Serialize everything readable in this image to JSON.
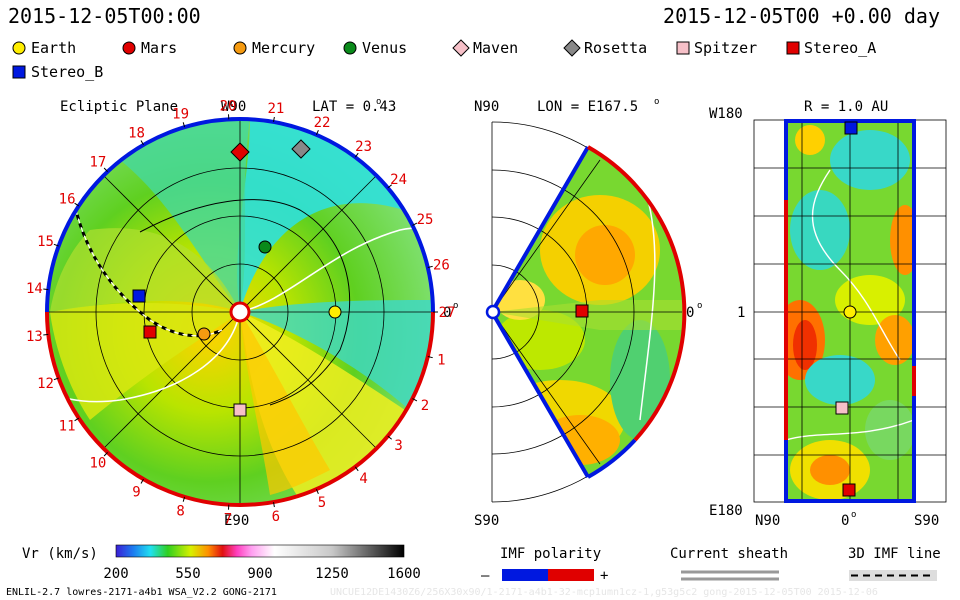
{
  "header": {
    "left_datetime": "2015-12-05T00:00",
    "right_datetime": "2015-12-05T00 +0.00 day"
  },
  "legend": [
    {
      "name": "Earth",
      "marker": "circle",
      "color": "#ffee00"
    },
    {
      "name": "Mars",
      "marker": "circle",
      "color": "#e00000"
    },
    {
      "name": "Mercury",
      "marker": "circle",
      "color": "#f59a10"
    },
    {
      "name": "Venus",
      "marker": "circle",
      "color": "#0a8a1a"
    },
    {
      "name": "Maven",
      "marker": "diamond",
      "color": "#f6c0c8"
    },
    {
      "name": "Rosetta",
      "marker": "diamond",
      "color": "#888888"
    },
    {
      "name": "Spitzer",
      "marker": "square",
      "color": "#f6c0c8"
    },
    {
      "name": "Stereo_A",
      "marker": "square",
      "color": "#e00000"
    },
    {
      "name": "Stereo_B",
      "marker": "square",
      "color": "#0018e0"
    }
  ],
  "panels": {
    "ecliptic": {
      "title": "Ecliptic Plane",
      "lat_label": "LAT = 0.43",
      "top_label": "W90",
      "bottom_label": "E90",
      "right_label": "0",
      "left_tick": "13",
      "carrington_ticks": [
        "1",
        "2",
        "3",
        "4",
        "5",
        "6",
        "7",
        "8",
        "9",
        "10",
        "11",
        "12",
        "13",
        "14",
        "15",
        "16",
        "17",
        "18",
        "19",
        "20",
        "21",
        "22",
        "23",
        "24",
        "25",
        "26",
        "27"
      ]
    },
    "meridional": {
      "top_label": "N90",
      "lon_label": "LON = E167.5",
      "bottom_label": "S90",
      "right_label": "0"
    },
    "shell": {
      "radius_label": "R = 1.0 AU",
      "top_left": "W180",
      "mid_left": "1",
      "bottom_left": "E180",
      "x_left": "N90",
      "x_mid": "0",
      "x_right": "S90"
    }
  },
  "colorbar": {
    "label": "Vr (km/s)",
    "ticks": [
      "200",
      "550",
      "900",
      "1250",
      "1600"
    ],
    "min": 200,
    "max": 1600
  },
  "bottom_legend": {
    "imf_label": "IMF polarity",
    "minus": "–",
    "plus": "+",
    "sheath_label": "Current sheath",
    "imf3d_label": "3D IMF line"
  },
  "footer": {
    "left": "ENLIL-2.7 lowres-2171-a4b1 WSA_V2.2 GONG-2171",
    "right": "UNCUE12DE1430Z6/256X30x90/1-2171-a4b1-32-mcp1umn1cz-1,g53g5c2 gong-2015-12-05T00  2015-12-06"
  },
  "chart_data": [
    {
      "type": "heatmap",
      "title": "Ecliptic Plane",
      "quantity": "Vr (km/s)",
      "value_range": [
        200,
        1600
      ],
      "bodies": [
        {
          "name": "Mars",
          "angle_deg": 90,
          "r_au": 1.6
        },
        {
          "name": "Rosetta",
          "angle_deg": 72,
          "r_au": 1.8
        },
        {
          "name": "Venus",
          "angle_deg": 78,
          "r_au": 0.72
        },
        {
          "name": "Earth",
          "angle_deg": 0,
          "r_au": 1.0
        },
        {
          "name": "Mercury",
          "angle_deg": 195,
          "r_au": 0.4
        },
        {
          "name": "Stereo_A",
          "angle_deg": 189,
          "r_au": 0.9
        },
        {
          "name": "Stereo_B",
          "angle_deg": 168,
          "r_au": 1.05
        },
        {
          "name": "Spitzer",
          "angle_deg": 270,
          "r_au": 1.0
        }
      ]
    },
    {
      "type": "heatmap",
      "title": "LON = E167.5",
      "quantity": "Vr (km/s)",
      "latitude_range": [
        -60,
        60
      ],
      "bodies": [
        {
          "name": "Stereo_A",
          "lat_deg": 0,
          "r_au": 0.9
        }
      ]
    },
    {
      "type": "heatmap",
      "title": "R = 1.0 AU",
      "quantity": "Vr (km/s)",
      "bodies": [
        {
          "name": "Stereo_B",
          "lat_deg": 0,
          "lon_deg": 180
        },
        {
          "name": "Earth",
          "lat_deg": 0,
          "lon_deg": 0
        },
        {
          "name": "Spitzer",
          "lat_deg": -1,
          "lon_deg": -100
        },
        {
          "name": "Stereo_A",
          "lat_deg": 0,
          "lon_deg": -170
        }
      ]
    }
  ]
}
